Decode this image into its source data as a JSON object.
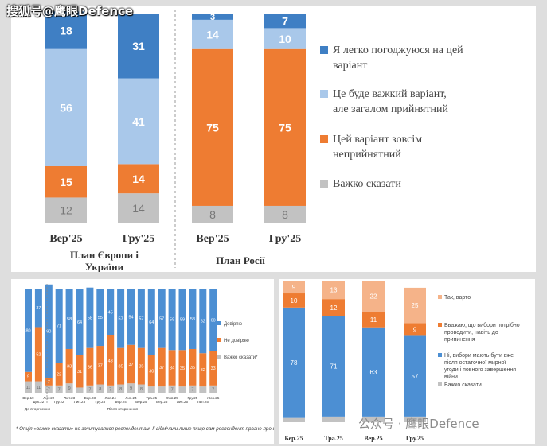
{
  "watermark": {
    "top": "搜狐号@鹰眼Defence",
    "bottom": "公众号 · 鹰眼Defence"
  },
  "colors": {
    "dark_blue": "#3f7fc4",
    "light_blue": "#a9c8ea",
    "orange": "#ee7c32",
    "grey": "#c2c2c2",
    "peach": "#f5b389",
    "mid_blue": "#4c8fd3"
  },
  "chart_data": [
    {
      "type": "bar",
      "stacked": true,
      "categories": [
        "Вер'25",
        "Гру'25",
        "Вер'25",
        "Гру'25"
      ],
      "groups": [
        "План Європи і України",
        "План Росії"
      ],
      "series": [
        {
          "name": "Важко сказати",
          "color_key": "grey",
          "values": [
            12,
            14,
            8,
            8
          ]
        },
        {
          "name": "Цей варіант зовсім неприйнятний",
          "color_key": "orange",
          "values": [
            15,
            14,
            75,
            75
          ]
        },
        {
          "name": "Це буде важкий варіант, але загалом прийнятний",
          "color_key": "light_blue",
          "values": [
            56,
            41,
            14,
            10
          ]
        },
        {
          "name": "Я легко погоджуюся на цей варіант",
          "color_key": "dark_blue",
          "values": [
            18,
            31,
            3,
            7
          ]
        }
      ],
      "legend": [
        {
          "label": "Я легко погоджуюся на цей варіант",
          "color_key": "dark_blue"
        },
        {
          "label": "Це буде важкий варіант, але загалом прийнятний",
          "color_key": "light_blue"
        },
        {
          "label": "Цей варіант зовсім неприйнятний",
          "color_key": "orange"
        },
        {
          "label": "Важко сказати",
          "color_key": "grey"
        }
      ]
    },
    {
      "type": "bar",
      "stacked": true,
      "categories": [
        "Вер.19",
        "Дек.22",
        "Лют.22",
        "Гру.22",
        "Лют.23",
        "Лип.23",
        "Вер.23",
        "Гру.23",
        "Лют.24",
        "Бер.24",
        "Лип.24",
        "Бер.25",
        "Тра.25",
        "Вер.25",
        "Жов.25",
        "Лис.25",
        "Гру.25",
        "Лип.25",
        "Жов.25"
      ],
      "group_notes": [
        "До вторгнення",
        "Після вторгнення"
      ],
      "series": [
        {
          "name": "Важко сказати*",
          "color_key": "grey",
          "values": [
            11,
            11,
            7,
            7,
            9,
            5,
            7,
            8,
            7,
            8,
            9,
            8,
            6,
            6,
            7,
            6,
            7,
            6,
            7
          ]
        },
        {
          "name": "Не довіряю",
          "color_key": "orange",
          "values": [
            9,
            52,
            7,
            22,
            33,
            31,
            36,
            37,
            48,
            35,
            37,
            35,
            30,
            37,
            34,
            35,
            35,
            32,
            33
          ]
        },
        {
          "name": "Довіряю",
          "color_key": "mid_blue",
          "values": [
            80,
            37,
            90,
            71,
            58,
            64,
            58,
            55,
            45,
            57,
            54,
            57,
            64,
            57,
            59,
            59,
            58,
            62,
            60
          ]
        }
      ],
      "footnote": "* Опція «важко сказати» не зачитувалися респондентам. Ії відмічали лише якщо сам респондент прагне про це."
    },
    {
      "type": "bar",
      "stacked": true,
      "categories": [
        "Бер.25",
        "Тра.25",
        "Вер.25",
        "Гру.25"
      ],
      "series": [
        {
          "name": "Важко сказати",
          "color_key": "grey",
          "values": [
            3,
            4,
            4,
            4
          ]
        },
        {
          "name": "Ні, вибори мають бути вже після остаточної мирної угоди і повного завершення війни",
          "color_key": "mid_blue",
          "values": [
            78,
            71,
            63,
            57
          ]
        },
        {
          "name": "Вважаю, що вибори потрібно проводити, навіть до припинення",
          "color_key": "orange",
          "values": [
            10,
            12,
            11,
            9
          ]
        },
        {
          "name": "Так, варто",
          "color_key": "peach",
          "values": [
            9,
            13,
            22,
            25
          ]
        }
      ],
      "legend": [
        {
          "label": "Так, варто",
          "color_key": "peach"
        },
        {
          "label": "Вважаю, що вибори потрібно проводити, навіть до припинення",
          "color_key": "orange"
        },
        {
          "label": "Ні, вибори мають бути вже після остаточної мирної угоди і повного завершення війни",
          "color_key": "mid_blue"
        },
        {
          "label": "Важко сказати",
          "color_key": "grey"
        }
      ]
    }
  ]
}
